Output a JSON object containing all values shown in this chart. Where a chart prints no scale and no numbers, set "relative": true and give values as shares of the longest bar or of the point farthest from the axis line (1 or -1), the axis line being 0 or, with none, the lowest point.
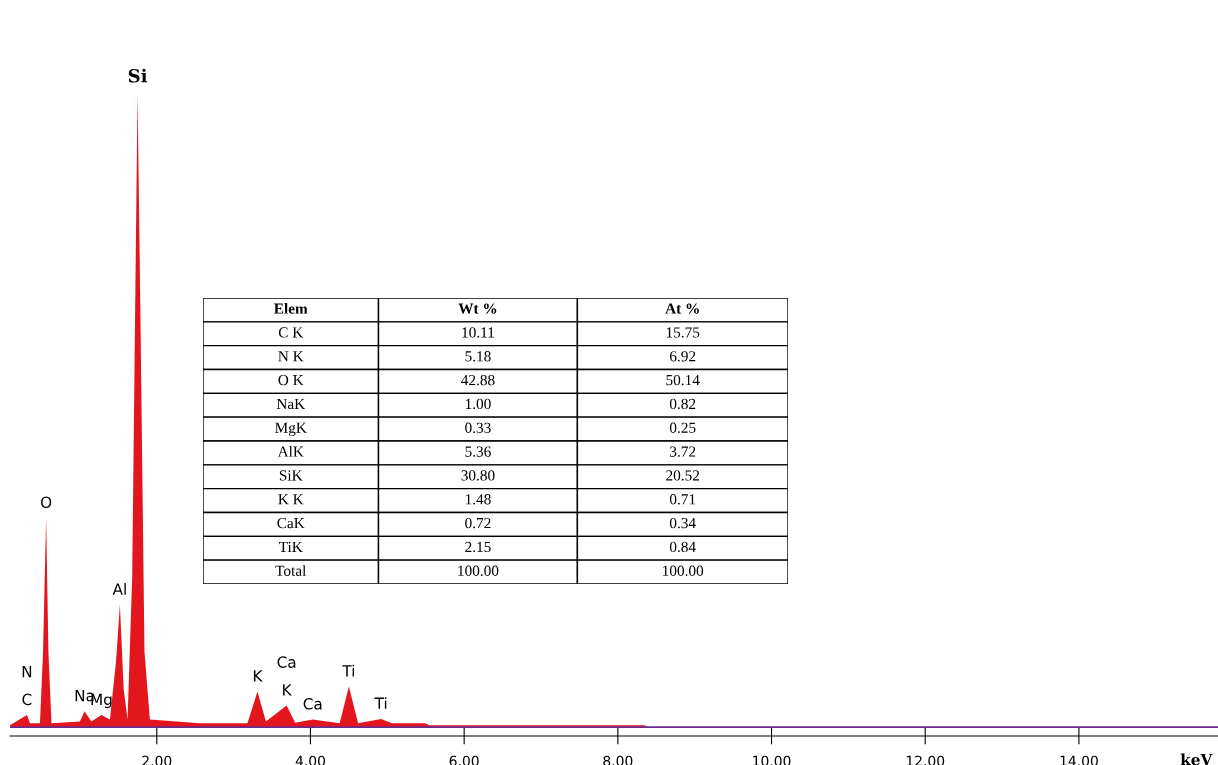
{
  "chart_data": [
    {
      "type": "area",
      "relative": true,
      "xlabel": "keV",
      "xlim": [
        0.09,
        15.81
      ],
      "xticks": [
        {
          "value": 2,
          "label": "2.00"
        },
        {
          "value": 4,
          "label": "4.00"
        },
        {
          "value": 6,
          "label": "6.00"
        },
        {
          "value": 8,
          "label": "8.00"
        },
        {
          "value": 10,
          "label": "10.00"
        },
        {
          "value": 12,
          "label": "12.00"
        },
        {
          "value": 14,
          "label": "14.00"
        }
      ],
      "grid": false,
      "legend": false,
      "tick_labels": "x",
      "series": [
        {
          "color": "#e3161d",
          "x": [
            0.09,
            0.31,
            0.35,
            0.48,
            0.52,
            0.56,
            0.59,
            0.63,
            1.0,
            1.06,
            1.15,
            1.28,
            1.39,
            1.47,
            1.52,
            1.57,
            1.62,
            1.68,
            1.75,
            1.79,
            1.84,
            1.91,
            2.56,
            3.18,
            3.31,
            3.42,
            3.69,
            3.8,
            4.03,
            4.38,
            4.5,
            4.62,
            4.92,
            5.06,
            5.49,
            5.55,
            8.35,
            8.38,
            15.81
          ],
          "values": [
            0.003,
            0.019,
            0.006,
            0.006,
            0.119,
            0.33,
            0.119,
            0.006,
            0.009,
            0.025,
            0.009,
            0.019,
            0.012,
            0.104,
            0.193,
            0.059,
            0.012,
            0.237,
            1.0,
            0.622,
            0.119,
            0.012,
            0.006,
            0.006,
            0.056,
            0.009,
            0.034,
            0.007,
            0.012,
            0.006,
            0.064,
            0.006,
            0.013,
            0.006,
            0.006,
            0.003,
            0.003,
            0.0,
            0.0
          ]
        }
      ],
      "annotations": [
        {
          "text": "Si",
          "x": 1.75,
          "y": 1.0
        },
        {
          "text": "O",
          "x": 0.56,
          "y": 0.33
        },
        {
          "text": "Al",
          "x": 1.52,
          "y": 0.193
        },
        {
          "text": "Na",
          "x": 1.06,
          "y": 0.025
        },
        {
          "text": "C",
          "x": 0.31,
          "y": 0.019
        },
        {
          "text": "N",
          "x": 0.31,
          "y": 0.019
        },
        {
          "text": "Mg",
          "x": 1.28,
          "y": 0.019
        },
        {
          "text": "K",
          "x": 3.31,
          "y": 0.056
        },
        {
          "text": "K",
          "x": 3.69,
          "y": 0.034
        },
        {
          "text": "Ca",
          "x": 3.69,
          "y": 0.034
        },
        {
          "text": "Ca",
          "x": 4.03,
          "y": 0.012
        },
        {
          "text": "Ti",
          "x": 4.5,
          "y": 0.064
        },
        {
          "text": "Ti",
          "x": 4.92,
          "y": 0.013
        }
      ]
    },
    {
      "type": "other",
      "ylabel": "Elem",
      "categories": [
        "C K",
        "N K",
        "O K",
        "NaK",
        "MgK",
        "AlK",
        "SiK",
        "K K",
        "CaK",
        "TiK",
        "Total"
      ],
      "series": [
        {
          "name": "Wt %",
          "values": [
            10.11,
            5.18,
            42.88,
            1.0,
            0.33,
            5.36,
            30.8,
            1.48,
            0.72,
            2.15,
            100.0
          ],
          "value_labels": [
            "10.11",
            "5.18",
            "42.88",
            "1.00",
            "0.33",
            "5.36",
            "30.80",
            "1.48",
            "0.72",
            "2.15",
            "100.00"
          ]
        },
        {
          "name": "At %",
          "values": [
            15.75,
            6.92,
            50.14,
            0.82,
            0.25,
            3.72,
            20.52,
            0.71,
            0.34,
            0.84,
            100.0
          ],
          "value_labels": [
            "15.75",
            "6.92",
            "50.14",
            "0.82",
            "0.25",
            "3.72",
            "20.52",
            "0.71",
            "0.34",
            "0.84",
            "100.00"
          ]
        }
      ]
    }
  ]
}
